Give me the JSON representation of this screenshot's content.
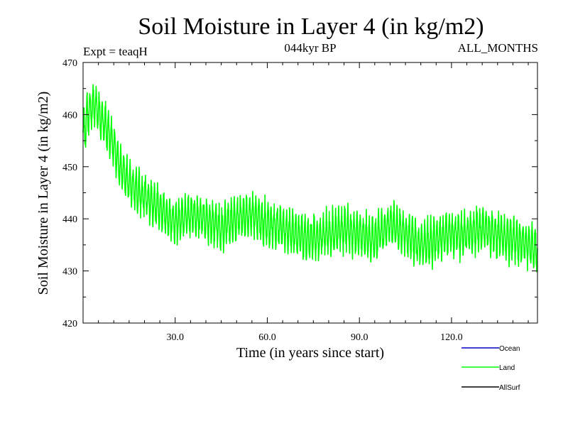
{
  "chart_data": {
    "type": "line",
    "title": "Soil Moisture in Layer 4 (in kg/m2)",
    "subtitle_left": "Expt = teaqH",
    "subtitle_center": "044kyr BP",
    "subtitle_right": "ALL_MONTHS",
    "xlabel": "Time (in years since start)",
    "ylabel": "Soil Moisture in Layer 4 (in kg/m2)",
    "xlim": [
      0,
      148
    ],
    "ylim": [
      420,
      470
    ],
    "xticks": [
      30,
      60,
      90,
      120
    ],
    "xtick_labels": [
      "30.0",
      "60.0",
      "90.0",
      "120.0"
    ],
    "yticks": [
      420,
      430,
      440,
      450,
      460,
      470
    ],
    "ytick_labels": [
      "420",
      "430",
      "440",
      "450",
      "460",
      "470"
    ],
    "legend_position": "bottom-right",
    "series": [
      {
        "name": "Ocean",
        "color": "#0000cc",
        "values": []
      },
      {
        "name": "Land",
        "color": "#00ff00",
        "samples_per_year": 12,
        "trend_x": [
          0,
          2,
          4,
          6,
          8,
          10,
          12,
          15,
          20,
          25,
          30,
          35,
          40,
          45,
          50,
          55,
          60,
          65,
          70,
          75,
          80,
          85,
          90,
          95,
          100,
          105,
          110,
          115,
          120,
          125,
          130,
          135,
          140,
          145,
          148
        ],
        "trend_y": [
          456,
          461,
          462,
          459,
          457,
          454,
          450,
          447,
          444,
          442,
          439,
          441,
          440,
          438,
          440,
          441,
          439,
          438,
          437,
          436,
          437,
          438,
          437,
          436,
          439,
          437,
          435,
          436,
          437,
          437,
          438,
          437,
          436,
          435,
          434
        ],
        "amplitude": 3.5
      },
      {
        "name": "AllSurf",
        "color": "#000000",
        "values": []
      }
    ]
  }
}
